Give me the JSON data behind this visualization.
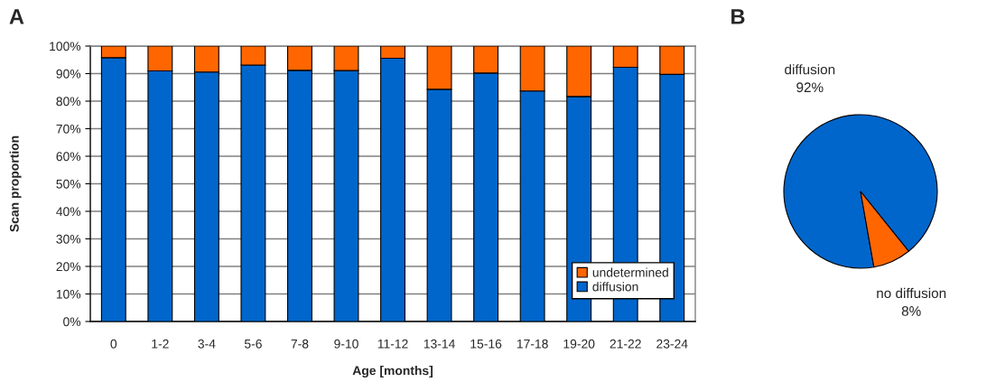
{
  "chart_data": [
    {
      "type": "bar",
      "title": "A",
      "xlabel": "Age [months]",
      "ylabel": "Scan proportion",
      "categories": [
        "0",
        "1-2",
        "3-4",
        "5-6",
        "7-8",
        "9-10",
        "11-12",
        "13-14",
        "15-16",
        "17-18",
        "19-20",
        "21-22",
        "23-24"
      ],
      "stacked": true,
      "series": [
        {
          "name": "diffusion",
          "color": "#0066cc",
          "values": [
            95.8,
            91.0,
            90.6,
            93.1,
            91.2,
            91.1,
            95.6,
            84.3,
            90.2,
            83.7,
            81.7,
            92.3,
            89.7
          ]
        },
        {
          "name": "undetermined",
          "color": "#ff6600",
          "values": [
            4.2,
            9.0,
            9.4,
            6.9,
            8.8,
            8.9,
            4.4,
            15.7,
            9.8,
            16.3,
            18.3,
            7.7,
            10.3
          ]
        }
      ],
      "ylim": [
        0,
        100
      ],
      "yticks": [
        {
          "value": 0,
          "label": "0%"
        },
        {
          "value": 10,
          "label": "10%"
        },
        {
          "value": 20,
          "label": "20%"
        },
        {
          "value": 30,
          "label": "30%"
        },
        {
          "value": 40,
          "label": "40%"
        },
        {
          "value": 50,
          "label": "50%"
        },
        {
          "value": 60,
          "label": "60%"
        },
        {
          "value": 70,
          "label": "70%"
        },
        {
          "value": 80,
          "label": "80%"
        },
        {
          "value": 90,
          "label": "90%"
        },
        {
          "value": 100,
          "label": "100%"
        }
      ],
      "grid": "y",
      "legend": "bottom right"
    },
    {
      "type": "pie",
      "title": "B",
      "categories": [
        "diffusion",
        "no diffusion"
      ],
      "values": [
        92,
        8
      ],
      "colors": [
        "#0066cc",
        "#ff6600"
      ],
      "value_labels": [
        "92%",
        "8%"
      ]
    }
  ]
}
